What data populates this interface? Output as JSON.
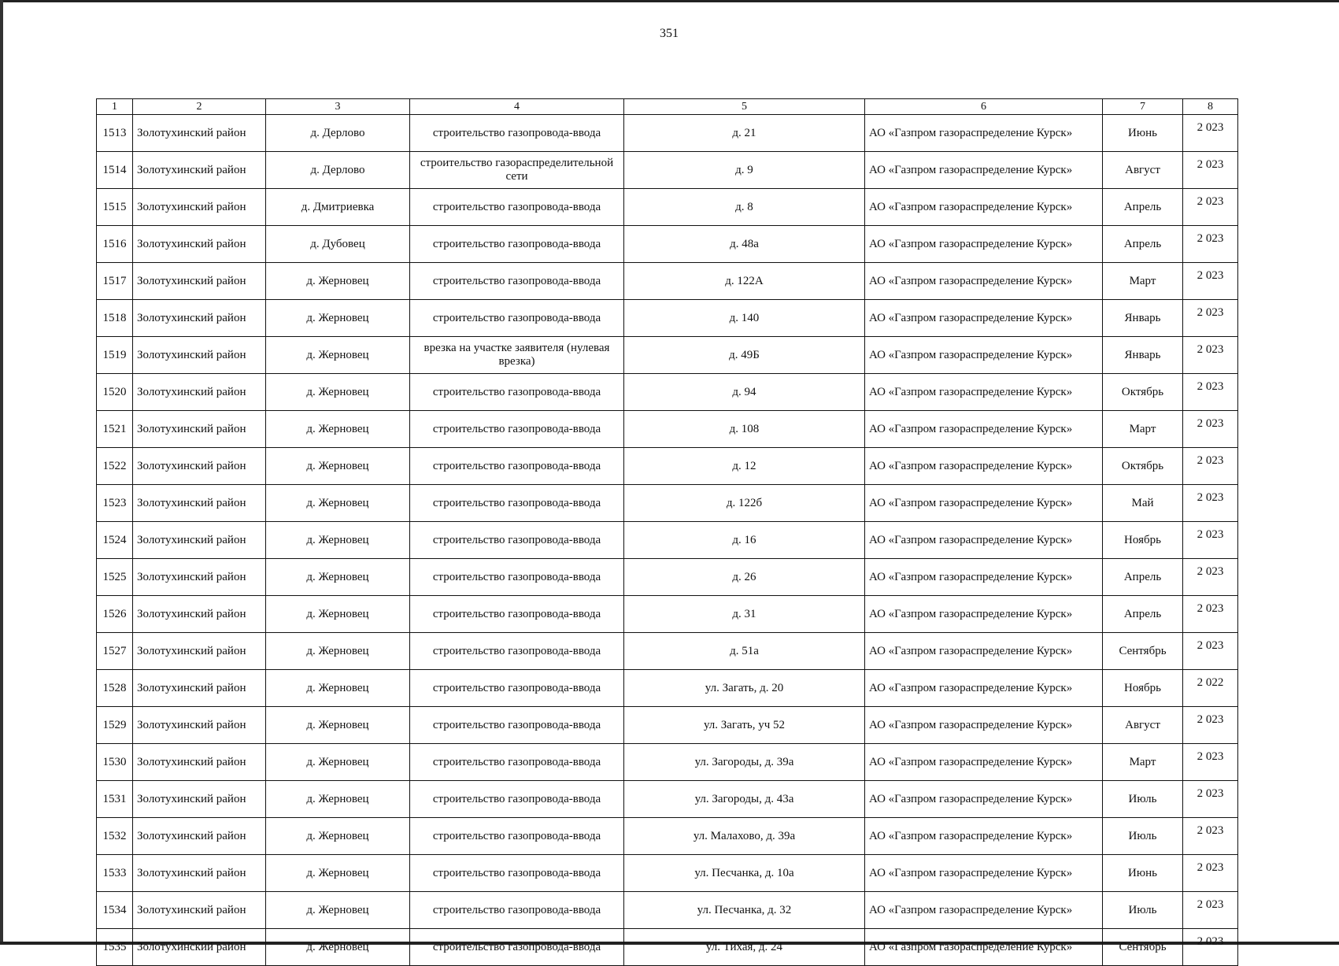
{
  "page_number": "351",
  "headers": [
    "1",
    "2",
    "3",
    "4",
    "5",
    "6",
    "7",
    "8"
  ],
  "rows": [
    [
      "1513",
      "Золотухинский район",
      "д. Дерлово",
      "строительство газопровода-ввода",
      "д. 21",
      "АО «Газпром газораспределение Курск»",
      "Июнь",
      "2 023"
    ],
    [
      "1514",
      "Золотухинский район",
      "д. Дерлово",
      "строительство газораспределительной сети",
      "д. 9",
      "АО «Газпром газораспределение Курск»",
      "Август",
      "2 023"
    ],
    [
      "1515",
      "Золотухинский район",
      "д. Дмитриевка",
      "строительство газопровода-ввода",
      "д. 8",
      "АО «Газпром газораспределение Курск»",
      "Апрель",
      "2 023"
    ],
    [
      "1516",
      "Золотухинский район",
      "д. Дубовец",
      "строительство газопровода-ввода",
      "д. 48а",
      "АО «Газпром газораспределение Курск»",
      "Апрель",
      "2 023"
    ],
    [
      "1517",
      "Золотухинский район",
      "д. Жерновец",
      "строительство газопровода-ввода",
      "д. 122А",
      "АО «Газпром газораспределение Курск»",
      "Март",
      "2 023"
    ],
    [
      "1518",
      "Золотухинский район",
      "д. Жерновец",
      "строительство газопровода-ввода",
      "д. 140",
      "АО «Газпром газораспределение Курск»",
      "Январь",
      "2 023"
    ],
    [
      "1519",
      "Золотухинский район",
      "д. Жерновец",
      "врезка на участке заявителя (нулевая врезка)",
      "д. 49Б",
      "АО «Газпром газораспределение Курск»",
      "Январь",
      "2 023"
    ],
    [
      "1520",
      "Золотухинский район",
      "д. Жерновец",
      "строительство газопровода-ввода",
      "д. 94",
      "АО «Газпром газораспределение Курск»",
      "Октябрь",
      "2 023"
    ],
    [
      "1521",
      "Золотухинский район",
      "д. Жерновец",
      "строительство газопровода-ввода",
      "д. 108",
      "АО «Газпром газораспределение Курск»",
      "Март",
      "2 023"
    ],
    [
      "1522",
      "Золотухинский район",
      "д. Жерновец",
      "строительство газопровода-ввода",
      "д. 12",
      "АО «Газпром газораспределение Курск»",
      "Октябрь",
      "2 023"
    ],
    [
      "1523",
      "Золотухинский район",
      "д. Жерновец",
      "строительство газопровода-ввода",
      "д. 122б",
      "АО «Газпром газораспределение Курск»",
      "Май",
      "2 023"
    ],
    [
      "1524",
      "Золотухинский район",
      "д. Жерновец",
      "строительство газопровода-ввода",
      "д. 16",
      "АО «Газпром газораспределение Курск»",
      "Ноябрь",
      "2 023"
    ],
    [
      "1525",
      "Золотухинский район",
      "д. Жерновец",
      "строительство газопровода-ввода",
      "д. 26",
      "АО «Газпром газораспределение Курск»",
      "Апрель",
      "2 023"
    ],
    [
      "1526",
      "Золотухинский район",
      "д. Жерновец",
      "строительство газопровода-ввода",
      "д. 31",
      "АО «Газпром газораспределение Курск»",
      "Апрель",
      "2 023"
    ],
    [
      "1527",
      "Золотухинский район",
      "д. Жерновец",
      "строительство газопровода-ввода",
      "д. 51а",
      "АО «Газпром газораспределение Курск»",
      "Сентябрь",
      "2 023"
    ],
    [
      "1528",
      "Золотухинский район",
      "д. Жерновец",
      "строительство газопровода-ввода",
      "ул. Загать, д. 20",
      "АО «Газпром газораспределение Курск»",
      "Ноябрь",
      "2 022"
    ],
    [
      "1529",
      "Золотухинский район",
      "д. Жерновец",
      "строительство газопровода-ввода",
      "ул. Загать, уч 52",
      "АО «Газпром газораспределение Курск»",
      "Август",
      "2 023"
    ],
    [
      "1530",
      "Золотухинский район",
      "д. Жерновец",
      "строительство газопровода-ввода",
      "ул. Загороды, д. 39а",
      "АО «Газпром газораспределение Курск»",
      "Март",
      "2 023"
    ],
    [
      "1531",
      "Золотухинский район",
      "д. Жерновец",
      "строительство газопровода-ввода",
      "ул. Загороды, д. 43а",
      "АО «Газпром газораспределение Курск»",
      "Июль",
      "2 023"
    ],
    [
      "1532",
      "Золотухинский район",
      "д. Жерновец",
      "строительство газопровода-ввода",
      "ул. Малахово, д. 39а",
      "АО «Газпром газораспределение Курск»",
      "Июль",
      "2 023"
    ],
    [
      "1533",
      "Золотухинский район",
      "д. Жерновец",
      "строительство газопровода-ввода",
      "ул. Песчанка, д. 10а",
      "АО «Газпром газораспределение Курск»",
      "Июнь",
      "2 023"
    ],
    [
      "1534",
      "Золотухинский район",
      "д. Жерновец",
      "строительство газопровода-ввода",
      "ул. Песчанка, д. 32",
      "АО «Газпром газораспределение Курск»",
      "Июль",
      "2 023"
    ],
    [
      "1535",
      "Золотухинский район",
      "д. Жерновец",
      "строительство газопровода-ввода",
      "ул. Тихая, д. 24",
      "АО «Газпром газораспределение Курск»",
      "Сентябрь",
      "2 023"
    ]
  ]
}
